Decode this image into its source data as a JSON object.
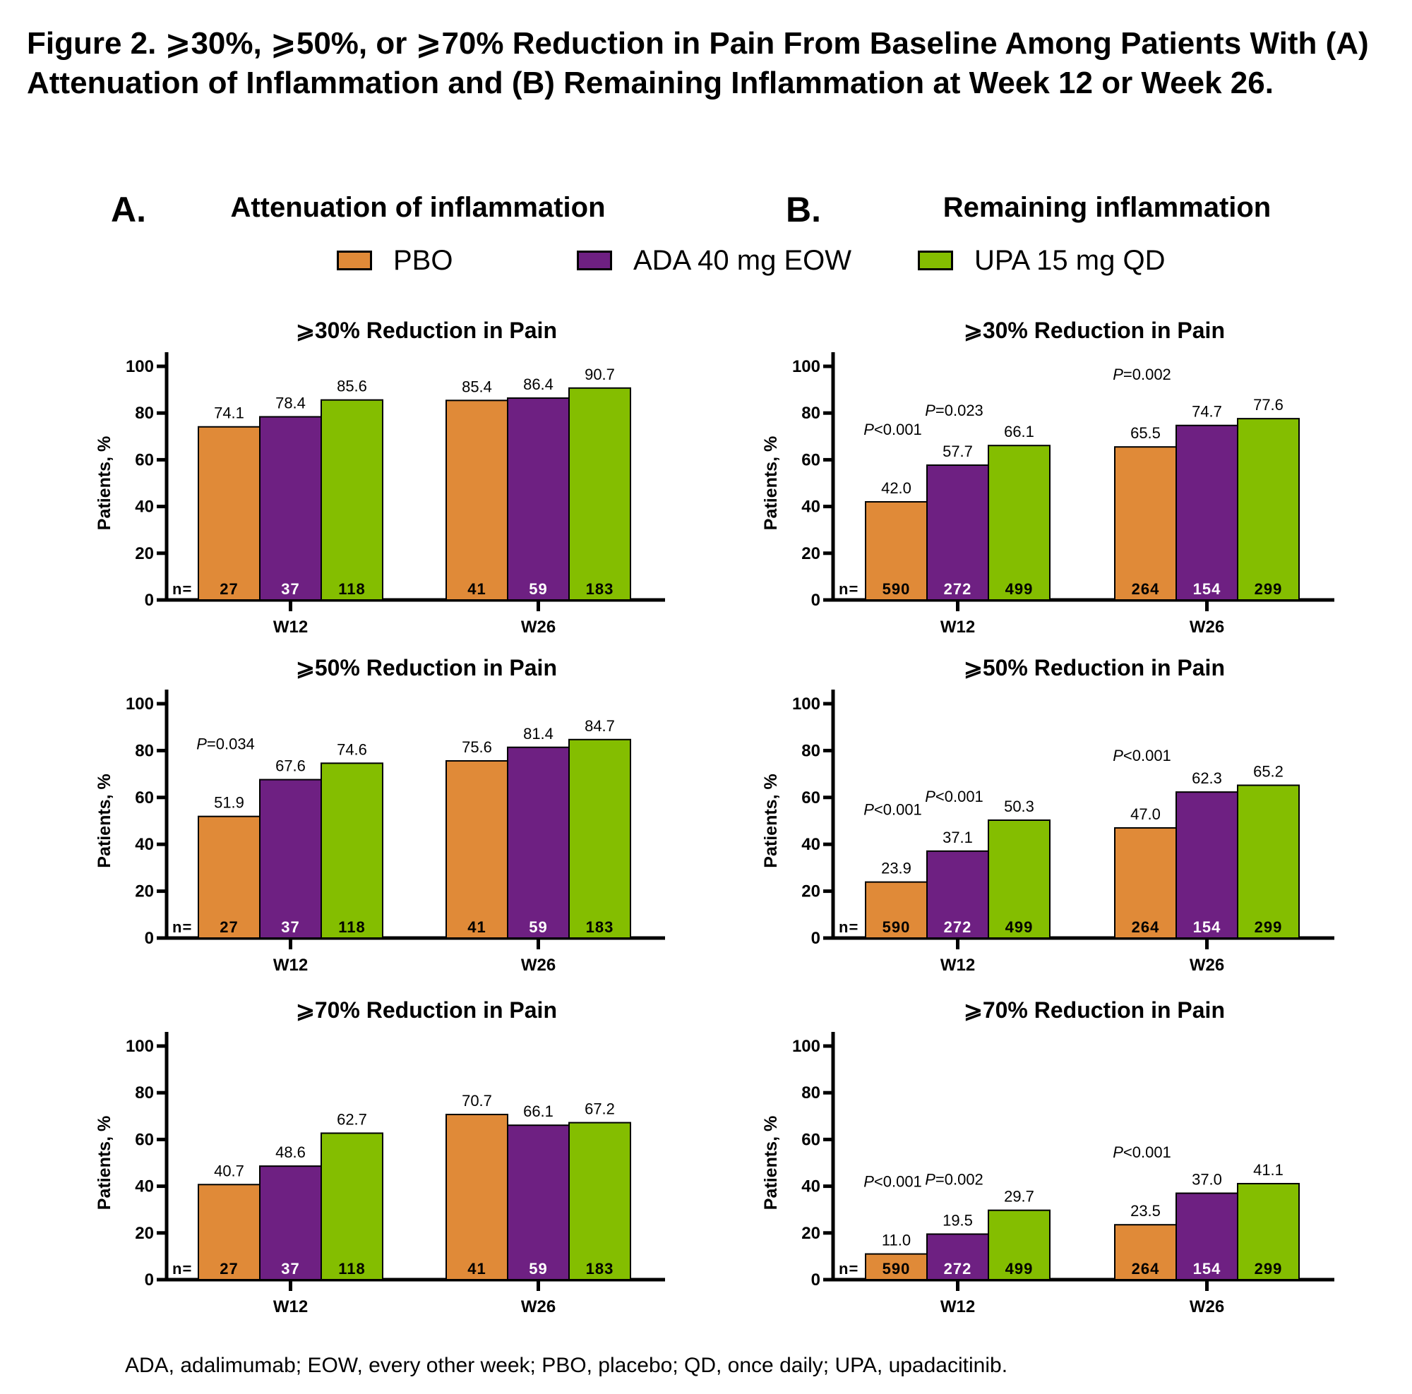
{
  "figure": {
    "title": "Figure 2. ⩾30%, ⩾50%, or ⩾70% Reduction in Pain From Baseline Among Patients With (A) Attenuation of Inflammation and (B) Remaining Inflammation at Week 12 or Week 26.",
    "panel_a": {
      "letter": "A.",
      "heading": "Attenuation of inflammation"
    },
    "panel_b": {
      "letter": "B.",
      "heading": "Remaining inflammation"
    },
    "footnote": "ADA, adalimumab; EOW, every other week; PBO, placebo; QD, once daily; UPA, upadacitinib."
  },
  "legend": [
    {
      "label": "PBO",
      "color": "#E08A38"
    },
    {
      "label": "ADA 40 mg EOW",
      "color": "#6E2082"
    },
    {
      "label": "UPA 15 mg QD",
      "color": "#84BE00"
    }
  ],
  "chart_data": [
    {
      "type": "bar",
      "panel": "A",
      "title": "⩾30% Reduction in Pain",
      "xlabel": "",
      "ylabel": "Patients, %",
      "ylim": [
        0,
        100
      ],
      "yticks": [
        0,
        20,
        40,
        60,
        80,
        100
      ],
      "categories": [
        "W12",
        "W26"
      ],
      "n_prefix": "n=",
      "series": [
        {
          "name": "PBO",
          "values": [
            74.1,
            85.4
          ],
          "labels": [
            "74.1",
            "85.4"
          ],
          "n": [
            "27",
            "41"
          ]
        },
        {
          "name": "ADA 40 mg EOW",
          "values": [
            78.4,
            86.4
          ],
          "labels": [
            "78.4",
            "86.4"
          ],
          "n": [
            "37",
            "59"
          ]
        },
        {
          "name": "UPA 15 mg QD",
          "values": [
            85.6,
            90.7
          ],
          "labels": [
            "85.6",
            "90.7"
          ],
          "n": [
            "118",
            "183"
          ]
        }
      ],
      "p_values": []
    },
    {
      "type": "bar",
      "panel": "B",
      "title": "⩾30% Reduction in Pain",
      "xlabel": "",
      "ylabel": "Patients, %",
      "ylim": [
        0,
        100
      ],
      "yticks": [
        0,
        20,
        40,
        60,
        80,
        100
      ],
      "categories": [
        "W12",
        "W26"
      ],
      "n_prefix": "n=",
      "series": [
        {
          "name": "PBO",
          "values": [
            42.0,
            65.5
          ],
          "labels": [
            "42.0",
            "65.5"
          ],
          "n": [
            "590",
            "264"
          ]
        },
        {
          "name": "ADA 40 mg EOW",
          "values": [
            57.7,
            74.7
          ],
          "labels": [
            "57.7",
            "74.7"
          ],
          "n": [
            "272",
            "154"
          ]
        },
        {
          "name": "UPA 15 mg QD",
          "values": [
            66.1,
            77.6
          ],
          "labels": [
            "66.1",
            "77.6"
          ],
          "n": [
            "499",
            "299"
          ]
        }
      ],
      "p_values": [
        {
          "category": "W12",
          "series": 0,
          "text": "<0.001"
        },
        {
          "category": "W12",
          "series": 1,
          "text": "=0.023"
        },
        {
          "category": "W26",
          "series": 0,
          "text": "=0.002"
        }
      ]
    },
    {
      "type": "bar",
      "panel": "A",
      "title": "⩾50% Reduction in Pain",
      "xlabel": "",
      "ylabel": "Patients, %",
      "ylim": [
        0,
        100
      ],
      "yticks": [
        0,
        20,
        40,
        60,
        80,
        100
      ],
      "categories": [
        "W12",
        "W26"
      ],
      "n_prefix": "n=",
      "series": [
        {
          "name": "PBO",
          "values": [
            51.9,
            75.6
          ],
          "labels": [
            "51.9",
            "75.6"
          ],
          "n": [
            "27",
            "41"
          ]
        },
        {
          "name": "ADA 40 mg EOW",
          "values": [
            67.6,
            81.4
          ],
          "labels": [
            "67.6",
            "81.4"
          ],
          "n": [
            "37",
            "59"
          ]
        },
        {
          "name": "UPA 15 mg QD",
          "values": [
            74.6,
            84.7
          ],
          "labels": [
            "74.6",
            "84.7"
          ],
          "n": [
            "118",
            "183"
          ]
        }
      ],
      "p_values": [
        {
          "category": "W12",
          "series": 0,
          "text": "=0.034"
        }
      ]
    },
    {
      "type": "bar",
      "panel": "B",
      "title": "⩾50% Reduction in Pain",
      "xlabel": "",
      "ylabel": "Patients, %",
      "ylim": [
        0,
        100
      ],
      "yticks": [
        0,
        20,
        40,
        60,
        80,
        100
      ],
      "categories": [
        "W12",
        "W26"
      ],
      "n_prefix": "n=",
      "series": [
        {
          "name": "PBO",
          "values": [
            23.9,
            47.0
          ],
          "labels": [
            "23.9",
            "47.0"
          ],
          "n": [
            "590",
            "264"
          ]
        },
        {
          "name": "ADA 40 mg EOW",
          "values": [
            37.1,
            62.3
          ],
          "labels": [
            "37.1",
            "62.3"
          ],
          "n": [
            "272",
            "154"
          ]
        },
        {
          "name": "UPA 15 mg QD",
          "values": [
            50.3,
            65.2
          ],
          "labels": [
            "50.3",
            "65.2"
          ],
          "n": [
            "499",
            "299"
          ]
        }
      ],
      "p_values": [
        {
          "category": "W12",
          "series": 0,
          "text": "<0.001"
        },
        {
          "category": "W12",
          "series": 1,
          "text": "<0.001"
        },
        {
          "category": "W26",
          "series": 0,
          "text": "<0.001"
        }
      ]
    },
    {
      "type": "bar",
      "panel": "A",
      "title": "⩾70% Reduction in Pain",
      "xlabel": "",
      "ylabel": "Patients, %",
      "ylim": [
        0,
        100
      ],
      "yticks": [
        0,
        20,
        40,
        60,
        80,
        100
      ],
      "categories": [
        "W12",
        "W26"
      ],
      "n_prefix": "n=",
      "series": [
        {
          "name": "PBO",
          "values": [
            40.7,
            70.7
          ],
          "labels": [
            "40.7",
            "70.7"
          ],
          "n": [
            "27",
            "41"
          ]
        },
        {
          "name": "ADA 40 mg EOW",
          "values": [
            48.6,
            66.1
          ],
          "labels": [
            "48.6",
            "66.1"
          ],
          "n": [
            "37",
            "59"
          ]
        },
        {
          "name": "UPA 15 mg QD",
          "values": [
            62.7,
            67.2
          ],
          "labels": [
            "62.7",
            "67.2"
          ],
          "n": [
            "118",
            "183"
          ]
        }
      ],
      "p_values": []
    },
    {
      "type": "bar",
      "panel": "B",
      "title": "⩾70% Reduction in Pain",
      "xlabel": "",
      "ylabel": "Patients, %",
      "ylim": [
        0,
        100
      ],
      "yticks": [
        0,
        20,
        40,
        60,
        80,
        100
      ],
      "categories": [
        "W12",
        "W26"
      ],
      "n_prefix": "n=",
      "series": [
        {
          "name": "PBO",
          "values": [
            11.0,
            23.5
          ],
          "labels": [
            "11.0",
            "23.5"
          ],
          "n": [
            "590",
            "264"
          ]
        },
        {
          "name": "ADA 40 mg EOW",
          "values": [
            19.5,
            37.0
          ],
          "labels": [
            "19.5",
            "37.0"
          ],
          "n": [
            "272",
            "154"
          ]
        },
        {
          "name": "UPA 15 mg QD",
          "values": [
            29.7,
            41.1
          ],
          "labels": [
            "29.7",
            "41.1"
          ],
          "n": [
            "499",
            "299"
          ]
        }
      ],
      "p_values": [
        {
          "category": "W12",
          "series": 0,
          "text": "<0.001"
        },
        {
          "category": "W12",
          "series": 1,
          "text": "=0.002"
        },
        {
          "category": "W26",
          "series": 0,
          "text": "<0.001"
        }
      ]
    }
  ]
}
